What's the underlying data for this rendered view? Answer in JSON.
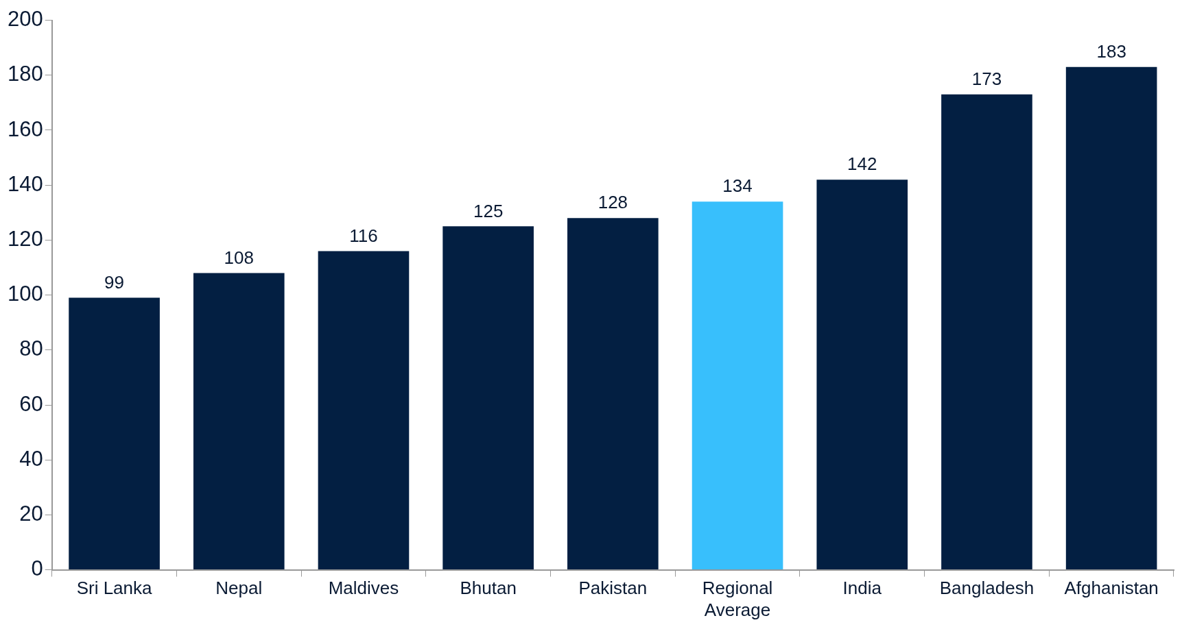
{
  "chart_data": {
    "type": "bar",
    "categories": [
      "Sri Lanka",
      "Nepal",
      "Maldives",
      "Bhutan",
      "Pakistan",
      "Regional Average",
      "India",
      "Bangladesh",
      "Afghanistan"
    ],
    "values": [
      99,
      108,
      116,
      125,
      128,
      134,
      142,
      173,
      183
    ],
    "colors": [
      "#031f42",
      "#031f42",
      "#031f42",
      "#031f42",
      "#031f42",
      "#38bffc",
      "#031f42",
      "#031f42",
      "#031f42"
    ],
    "ylim": [
      0,
      200
    ],
    "yticks": [
      0,
      20,
      40,
      60,
      80,
      100,
      120,
      140,
      160,
      180,
      200
    ],
    "data_labels": true,
    "grid": false,
    "legend": false
  }
}
